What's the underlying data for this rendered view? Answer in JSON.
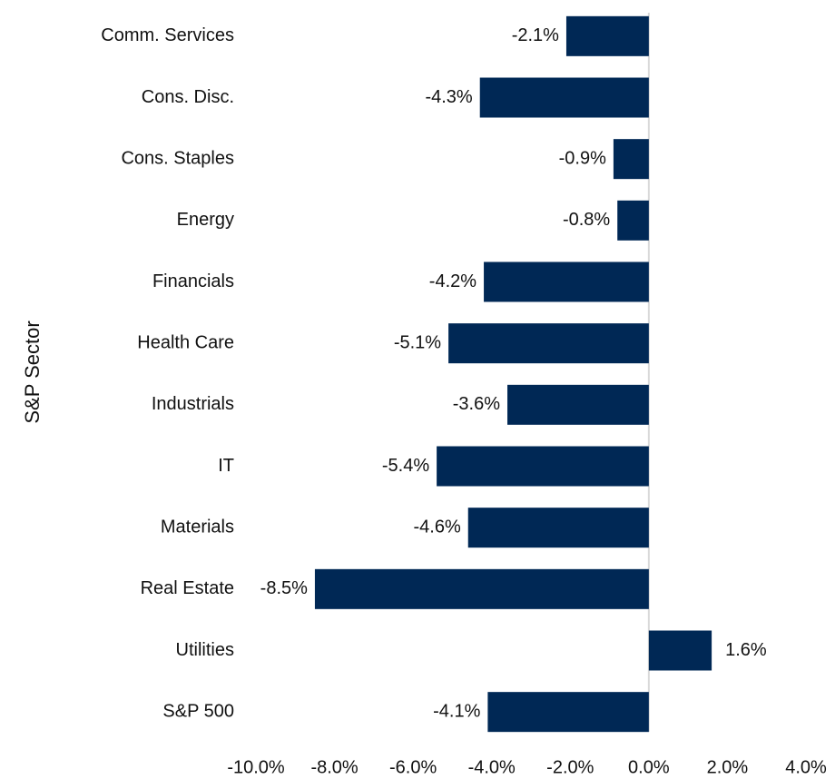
{
  "chart_data": {
    "type": "barh",
    "y_label": "S&P Sector",
    "categories": [
      "Comm. Services",
      "Cons. Disc.",
      "Cons. Staples",
      "Energy",
      "Financials",
      "Health Care",
      "Industrials",
      "IT",
      "Materials",
      "Real Estate",
      "Utilities",
      "S&P 500"
    ],
    "values": [
      -2.1,
      -4.3,
      -0.9,
      -0.8,
      -4.2,
      -5.1,
      -3.6,
      -5.4,
      -4.6,
      -8.5,
      1.6,
      -4.1
    ],
    "value_labels": [
      "-2.1%",
      "-4.3%",
      "-0.9%",
      "-0.8%",
      "-4.2%",
      "-5.1%",
      "-3.6%",
      "-5.4%",
      "-4.6%",
      "-8.5%",
      "1.6%",
      "-4.1%"
    ],
    "color": "#002855",
    "xlim": [
      -10,
      4
    ],
    "xticks": [
      {
        "value": -10,
        "label": "-10.0%"
      },
      {
        "value": -8,
        "label": "-8.0%"
      },
      {
        "value": -6,
        "label": "-6.0%"
      },
      {
        "value": -4,
        "label": "-4.0%"
      },
      {
        "value": -2,
        "label": "-2.0%"
      },
      {
        "value": 0,
        "label": "0.0%"
      },
      {
        "value": 2,
        "label": "2.0%"
      },
      {
        "value": 4,
        "label": "4.0%"
      }
    ]
  }
}
